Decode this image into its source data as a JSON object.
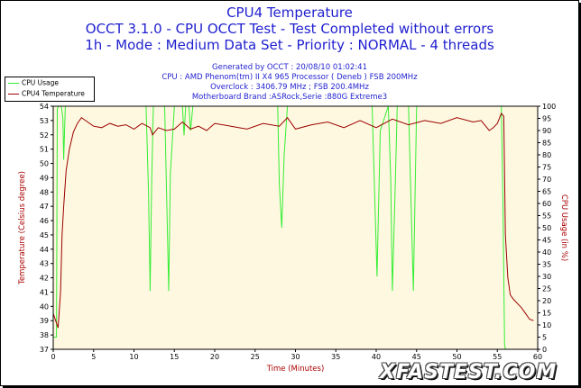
{
  "titles": {
    "line1": "CPU4 Temperature",
    "line2": "OCCT 3.1.0 - CPU OCCT Test - Test Completed without errors",
    "line3": "1h - Mode : Medium Data Set - Priority : NORMAL - 4 threads"
  },
  "info": {
    "generated": "Generated by OCCT : 20/08/10 01:02:41",
    "cpu": "CPU : AMD Phenom(tm) II X4 965 Processor ( Deneb ) FSB 200MHz",
    "overclock": "Overclock : 3406.79 MHz ; FSB 200.4MHz",
    "motherboard": "Motherboard Brand :ASRock,Serie :880G Extreme3"
  },
  "legend": {
    "series1": "CPU Usage",
    "series2": "CPU4 Temperature"
  },
  "watermark": "XFASTEST.COM",
  "colors": {
    "plot_background": "#FFF8E0",
    "cpu_usage": "#33EE33",
    "temperature": "#990000",
    "title": "#1F1FCF",
    "axis_label": "#AA0000"
  },
  "chart_data": {
    "type": "line",
    "xlabel": "Time (Minutes)",
    "ylabel_left": "Temperature (Celsius degree)",
    "ylabel_right": "CPU Usage (in %)",
    "xlim": [
      0,
      60
    ],
    "ylim_left": [
      37,
      54
    ],
    "ylim_right": [
      0,
      100
    ],
    "x_ticks": [
      0,
      5,
      10,
      15,
      20,
      25,
      30,
      35,
      40,
      45,
      50,
      55,
      60
    ],
    "y_ticks_left": [
      37,
      38,
      39,
      40,
      41,
      42,
      43,
      44,
      45,
      46,
      47,
      48,
      49,
      50,
      51,
      52,
      53,
      54
    ],
    "y_ticks_right": [
      0,
      5,
      10,
      15,
      20,
      25,
      30,
      35,
      40,
      45,
      50,
      55,
      60,
      65,
      70,
      75,
      80,
      85,
      90,
      95,
      100
    ],
    "grid": false,
    "legend_position": "top-left",
    "series": [
      {
        "name": "CPU Usage",
        "axis": "right",
        "x": [
          0,
          0.4,
          0.5,
          0.7,
          1.0,
          1.2,
          1.3,
          1.5,
          2.0,
          5.0,
          9.0,
          11.5,
          11.8,
          12.0,
          12.2,
          12.4,
          13.0,
          13.8,
          14.0,
          14.3,
          14.5,
          15.0,
          16.0,
          16.2,
          16.4,
          16.8,
          17.0,
          17.3,
          17.5,
          20.0,
          24.0,
          27.8,
          28.0,
          28.3,
          28.6,
          29.0,
          33.0,
          36.0,
          39.5,
          39.8,
          40.1,
          40.5,
          41.5,
          41.8,
          42.0,
          42.3,
          42.6,
          43.0,
          44.0,
          44.3,
          44.6,
          45.0,
          48.0,
          52.0,
          55.5,
          55.7,
          55.9,
          56.0
        ],
        "values": [
          5,
          5,
          99,
          100,
          100,
          95,
          78,
          100,
          100,
          100,
          100,
          100,
          65,
          24,
          70,
          100,
          100,
          100,
          70,
          24,
          72,
          100,
          100,
          88,
          100,
          100,
          90,
          100,
          100,
          100,
          100,
          100,
          68,
          50,
          80,
          100,
          100,
          100,
          100,
          65,
          30,
          90,
          100,
          70,
          24,
          60,
          100,
          100,
          100,
          62,
          24,
          100,
          100,
          100,
          100,
          60,
          2,
          0
        ]
      },
      {
        "name": "CPU4 Temperature",
        "axis": "left",
        "x": [
          0,
          0.3,
          0.6,
          0.9,
          1.1,
          1.3,
          1.6,
          2.0,
          2.5,
          3.0,
          3.5,
          4.0,
          5.0,
          6.0,
          7.0,
          8.0,
          9.0,
          10.0,
          11.0,
          12.0,
          12.3,
          13.0,
          14.0,
          15.0,
          16.0,
          17.0,
          18.0,
          19.0,
          20.0,
          22.0,
          24.0,
          26.0,
          28.0,
          29.0,
          30.0,
          32.0,
          34.0,
          36.0,
          38.0,
          40.0,
          42.0,
          44.0,
          46.0,
          48.0,
          50.0,
          52.0,
          53.0,
          54.0,
          54.5,
          55.0,
          55.5,
          55.8,
          56.0,
          56.3,
          56.6,
          57.0,
          57.5,
          58.0,
          58.5,
          59.0,
          59.5
        ],
        "values": [
          39.5,
          39,
          38.5,
          41,
          45,
          47,
          49.5,
          51,
          52.2,
          52.8,
          53.2,
          53.0,
          52.6,
          52.5,
          52.8,
          52.6,
          52.7,
          52.4,
          52.8,
          52.5,
          52.0,
          52.5,
          52.3,
          52.4,
          52.9,
          52.4,
          52.6,
          52.3,
          52.8,
          52.6,
          52.4,
          52.8,
          52.6,
          53.2,
          52.4,
          52.7,
          52.9,
          52.5,
          53.0,
          52.5,
          53.1,
          52.7,
          53.0,
          52.8,
          53.2,
          52.9,
          53.0,
          52.3,
          52.5,
          52.8,
          53.5,
          53.3,
          45,
          42,
          40.8,
          40.5,
          40.2,
          39.9,
          39.5,
          39.1,
          39.0
        ]
      }
    ]
  }
}
